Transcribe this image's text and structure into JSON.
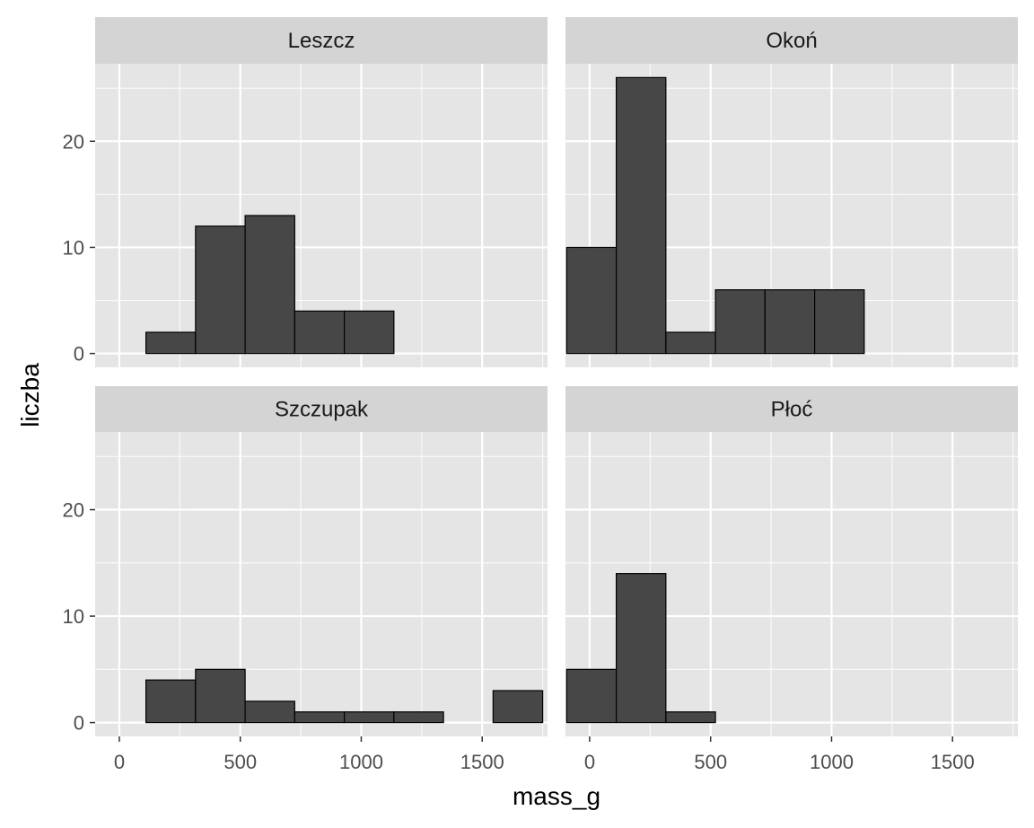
{
  "colors": {
    "panel_bg": "#e5e5e5",
    "strip_bg": "#d4d4d4",
    "grid_major": "#ffffff",
    "bar_fill": "#474747",
    "bar_stroke": "#000000",
    "tick_text": "#4d4d4d",
    "title_text": "#000000"
  },
  "chart_data": {
    "type": "bar",
    "subtype": "faceted histogram",
    "xlabel": "mass_g",
    "ylabel": "liczba",
    "x_ticks": [
      0,
      500,
      1000,
      1500
    ],
    "y_ticks": [
      0,
      10,
      20
    ],
    "xlim": [
      -100,
      1770
    ],
    "ylim": [
      -1.3,
      27.3
    ],
    "grid": true,
    "facets": [
      {
        "name": "Leszcz",
        "bins": [
          {
            "x0": 110,
            "x1": 315,
            "count": 2
          },
          {
            "x0": 315,
            "x1": 520,
            "count": 12
          },
          {
            "x0": 520,
            "x1": 725,
            "count": 13
          },
          {
            "x0": 725,
            "x1": 930,
            "count": 4
          },
          {
            "x0": 930,
            "x1": 1135,
            "count": 4
          }
        ]
      },
      {
        "name": "Okoń",
        "bins": [
          {
            "x0": -95,
            "x1": 110,
            "count": 10
          },
          {
            "x0": 110,
            "x1": 315,
            "count": 26
          },
          {
            "x0": 315,
            "x1": 520,
            "count": 2
          },
          {
            "x0": 520,
            "x1": 725,
            "count": 6
          },
          {
            "x0": 725,
            "x1": 930,
            "count": 6
          },
          {
            "x0": 930,
            "x1": 1135,
            "count": 6
          }
        ]
      },
      {
        "name": "Szczupak",
        "bins": [
          {
            "x0": 110,
            "x1": 315,
            "count": 4
          },
          {
            "x0": 315,
            "x1": 520,
            "count": 5
          },
          {
            "x0": 520,
            "x1": 725,
            "count": 2
          },
          {
            "x0": 725,
            "x1": 930,
            "count": 1
          },
          {
            "x0": 930,
            "x1": 1135,
            "count": 1
          },
          {
            "x0": 1135,
            "x1": 1340,
            "count": 1
          },
          {
            "x0": 1545,
            "x1": 1750,
            "count": 3
          }
        ]
      },
      {
        "name": "Płoć",
        "bins": [
          {
            "x0": -95,
            "x1": 110,
            "count": 5
          },
          {
            "x0": 110,
            "x1": 315,
            "count": 14
          },
          {
            "x0": 315,
            "x1": 520,
            "count": 1
          }
        ]
      }
    ]
  }
}
